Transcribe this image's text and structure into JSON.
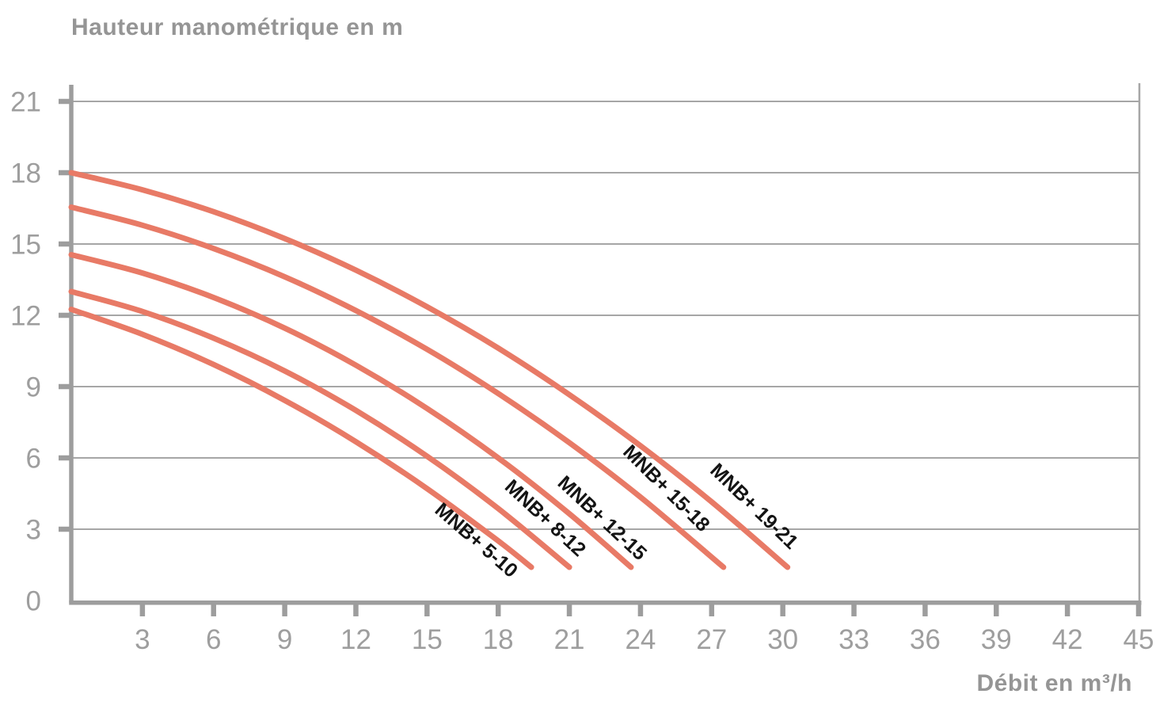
{
  "chart_data": {
    "type": "line",
    "title": "Hauteur manométrique en m",
    "xlabel": "Débit en m³/h",
    "ylabel": "Hauteur manométrique en m",
    "x_unit": "m³/h",
    "y_unit": "m",
    "xlim": [
      0,
      45
    ],
    "ylim": [
      0,
      21
    ],
    "x_ticks": [
      3,
      6,
      9,
      12,
      15,
      18,
      21,
      24,
      27,
      30,
      33,
      36,
      39,
      42,
      45
    ],
    "y_ticks": [
      0,
      3,
      6,
      9,
      12,
      15,
      18,
      21
    ],
    "grid": "horizontal",
    "legend_position": "labels-on-curves",
    "colors": {
      "curve": "#E87A66",
      "axis": "#9D9D9D",
      "grid": "#A6A6A6",
      "tick_label": "#9E9E9E",
      "axis_title": "#959595",
      "curve_label": "#141414",
      "background": "#FFFFFF"
    },
    "series": [
      {
        "name": "MNB+ 5-10",
        "points": [
          [
            0,
            12.25
          ],
          [
            3,
            11.2
          ],
          [
            6,
            9.93
          ],
          [
            9,
            8.42
          ],
          [
            12,
            6.68
          ],
          [
            15,
            4.71
          ],
          [
            18,
            2.51
          ],
          [
            19.4,
            1.4
          ]
        ],
        "label_at": [
          16.9,
          2.33
        ],
        "label_angle": 41
      },
      {
        "name": "MNB+ 8-12",
        "points": [
          [
            0,
            13.0
          ],
          [
            3,
            12.16
          ],
          [
            6,
            11.04
          ],
          [
            9,
            9.66
          ],
          [
            12,
            8.0
          ],
          [
            15,
            6.07
          ],
          [
            18,
            3.87
          ],
          [
            21,
            1.4
          ]
        ],
        "label_at": [
          19.8,
          3.27
        ],
        "label_angle": 43
      },
      {
        "name": "MNB+ 12-15",
        "points": [
          [
            0,
            14.55
          ],
          [
            3,
            13.78
          ],
          [
            6,
            12.75
          ],
          [
            9,
            11.46
          ],
          [
            12,
            9.9
          ],
          [
            15,
            8.08
          ],
          [
            18,
            6.0
          ],
          [
            21,
            3.65
          ],
          [
            23.6,
            1.4
          ]
        ],
        "label_at": [
          22.2,
          3.27
        ],
        "label_angle": 43
      },
      {
        "name": "MNB+ 15-18",
        "points": [
          [
            0,
            16.55
          ],
          [
            3,
            15.79
          ],
          [
            6,
            14.81
          ],
          [
            9,
            13.62
          ],
          [
            12,
            12.2
          ],
          [
            15,
            10.57
          ],
          [
            18,
            8.71
          ],
          [
            21,
            6.64
          ],
          [
            24,
            4.35
          ],
          [
            27.5,
            1.4
          ]
        ],
        "label_at": [
          24.9,
          4.53
        ],
        "label_angle": 45
      },
      {
        "name": "MNB+ 19-21",
        "points": [
          [
            0,
            18.0
          ],
          [
            3,
            17.28
          ],
          [
            6,
            16.36
          ],
          [
            9,
            15.23
          ],
          [
            12,
            13.9
          ],
          [
            15,
            12.36
          ],
          [
            18,
            10.62
          ],
          [
            21,
            8.66
          ],
          [
            24,
            6.51
          ],
          [
            27,
            4.15
          ],
          [
            30.2,
            1.4
          ]
        ],
        "label_at": [
          28.6,
          3.77
        ],
        "label_angle": 44
      }
    ]
  }
}
